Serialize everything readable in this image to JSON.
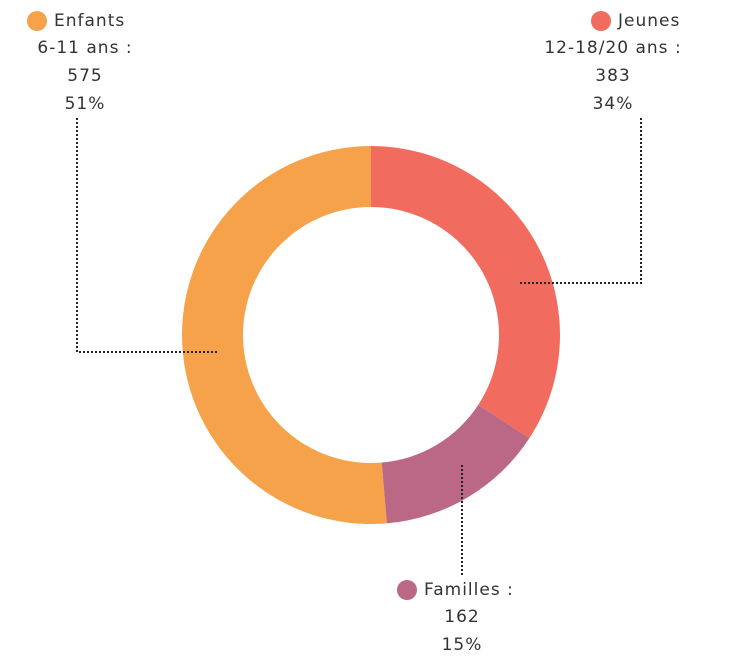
{
  "chart_data": {
    "type": "donut",
    "categories": [
      "Enfants",
      "Jeunes",
      "Familles :"
    ],
    "category_notes": [
      "6-11 ans :",
      "12-18/20 ans :"
    ],
    "values": [
      575,
      383,
      162
    ],
    "percent_labels": [
      "51%",
      "34%",
      "15%"
    ],
    "colors": [
      "#f6a24b",
      "#f26b5f",
      "#bb6887"
    ]
  }
}
